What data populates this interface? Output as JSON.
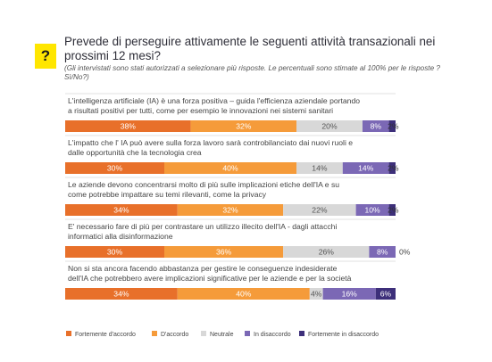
{
  "question": {
    "badge": "?",
    "title": "Prevede di perseguire attivamente le seguenti attività transazionali nei prossimi 12 mesi?",
    "subtitle": "(Gli intervistati sono stati autorizzati a selezionare più risposte. Le percentuali sono stimate al 100% per le risposte ?Sì/No?)"
  },
  "colors": {
    "strongly_agree": "#e8702a",
    "agree": "#f59b3a",
    "neutral": "#d8d8d8",
    "disagree": "#7b68b5",
    "strongly_disagree": "#3d2f7a"
  },
  "chart_data": {
    "type": "bar",
    "stacked": true,
    "orientation": "horizontal",
    "legend_position": "bottom-left",
    "categories": [
      "L'intelligenza artificiale (IA) è una forza positiva – guida l'efficienza aziendale portando a risultati positivi per tutti, come per esempio le innovazioni nei sistemi sanitari",
      "L'impatto che l' IA può avere sulla forza lavoro sarà controbilanciato dai nuovi ruoli e dalle opportunità che la tecnologia crea",
      "Le aziende devono concentrarsi molto di più sulle implicazioni etiche dell'IA e su come potrebbe impattare su temi rilevanti, come la privacy",
      "E' necessario fare di più per contrastare un utilizzo illecito dell'IA - dagli attacchi informatici alla disinformazione",
      "Non si sta ancora facendo abbastanza per gestire le conseguenze indesiderate dell'IA che potrebbero avere implicazioni significative per le aziende e per la società"
    ],
    "category_lines": [
      [
        "L'intelligenza artificiale (IA) è una forza positiva – guida l'efficienza aziendale portando",
        "a risultati positivi per tutti, come per esempio le innovazioni nei sistemi sanitari"
      ],
      [
        "L'impatto che l' IA può avere sulla forza lavoro sarà controbilanciato dai nuovi ruoli e",
        "dalle opportunità che la tecnologia crea"
      ],
      [
        "Le aziende devono concentrarsi molto di più sulle implicazioni etiche dell'IA e su",
        "come potrebbe impattare su temi rilevanti, come la privacy"
      ],
      [
        "E' necessario fare di più per contrastare un utilizzo illecito dell'IA - dagli attacchi",
        "informatici alla disinformazione"
      ],
      [
        "Non si sta ancora facendo abbastanza per gestire le conseguenze indesiderate",
        "dell'IA che potrebbero avere implicazioni significative per le aziende e per la società"
      ]
    ],
    "series": [
      {
        "name": "Fortemente d'accordo",
        "color_key": "strongly_agree",
        "values": [
          38,
          30,
          34,
          30,
          34
        ]
      },
      {
        "name": "D'accordo",
        "color_key": "agree",
        "values": [
          32,
          40,
          32,
          36,
          40
        ]
      },
      {
        "name": "Neutrale",
        "color_key": "neutral",
        "values": [
          20,
          14,
          22,
          26,
          4
        ]
      },
      {
        "name": "In disaccordo",
        "color_key": "disagree",
        "values": [
          8,
          14,
          10,
          8,
          16
        ]
      },
      {
        "name": "Fortemente in disaccordo",
        "color_key": "strongly_disagree",
        "values": [
          2,
          2,
          2,
          0,
          6
        ]
      }
    ],
    "unit": "%",
    "xlim": [
      0,
      100
    ]
  }
}
